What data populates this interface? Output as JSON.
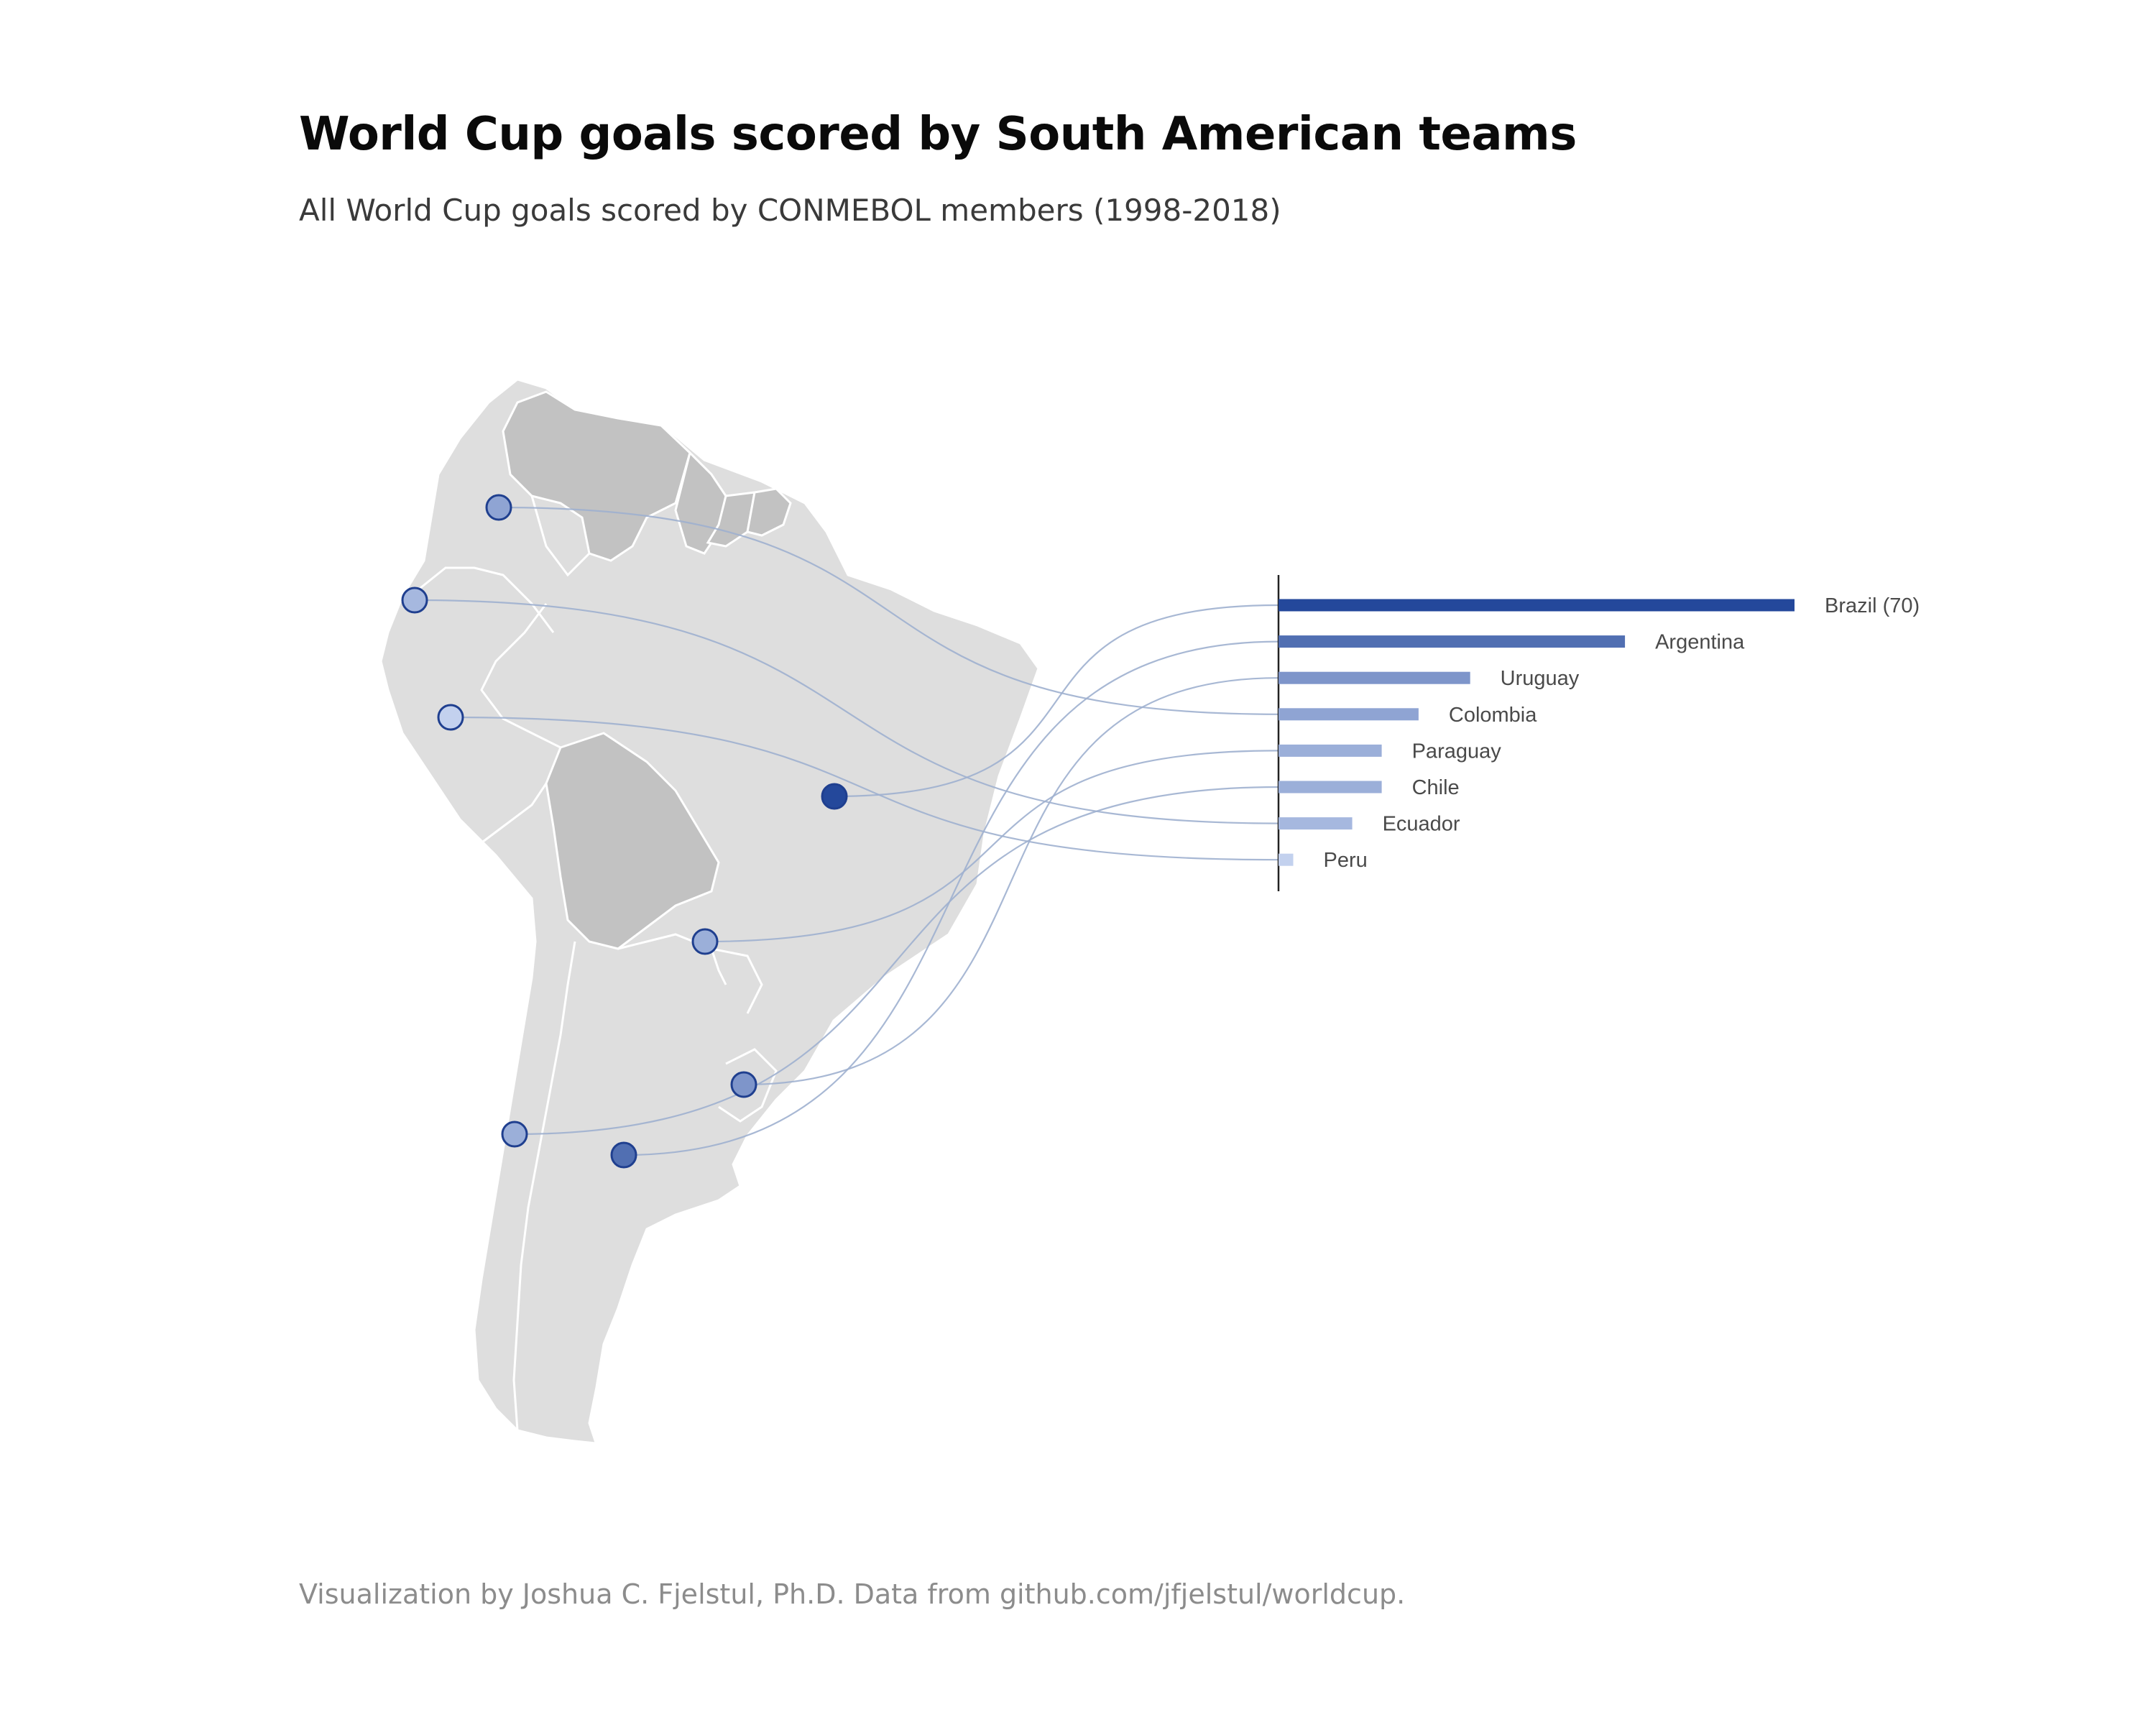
{
  "title": "World Cup goals scored by South American teams",
  "subtitle": "All World Cup goals scored by CONMEBOL members (1998-2018)",
  "caption": "Visualization by Joshua C. Fjelstul, Ph.D. Data from github.com/jfjelstul/worldcup.",
  "colors": {
    "land": "#dedede",
    "land_dark": "#c2c2c2",
    "border": "#ffffff",
    "connector": "#9eb0cf",
    "axis": "#222222",
    "marker_stroke": "#1f3f8f",
    "scale_low": "#c3d1ee",
    "scale_high": "#24489b"
  },
  "chart_data": {
    "type": "bar",
    "orientation": "horizontal",
    "variable": "goals",
    "categories": [
      "Brazil",
      "Argentina",
      "Uruguay",
      "Colombia",
      "Paraguay",
      "Chile",
      "Ecuador",
      "Peru"
    ],
    "values": [
      70,
      47,
      26,
      19,
      14,
      14,
      10,
      2
    ],
    "labels": [
      "Brazil (70)",
      "Argentina",
      "Uruguay",
      "Colombia",
      "Paraguay",
      "Chile",
      "Ecuador",
      "Peru"
    ],
    "xlim": [
      0,
      70
    ],
    "grid": false,
    "legend": "none"
  }
}
